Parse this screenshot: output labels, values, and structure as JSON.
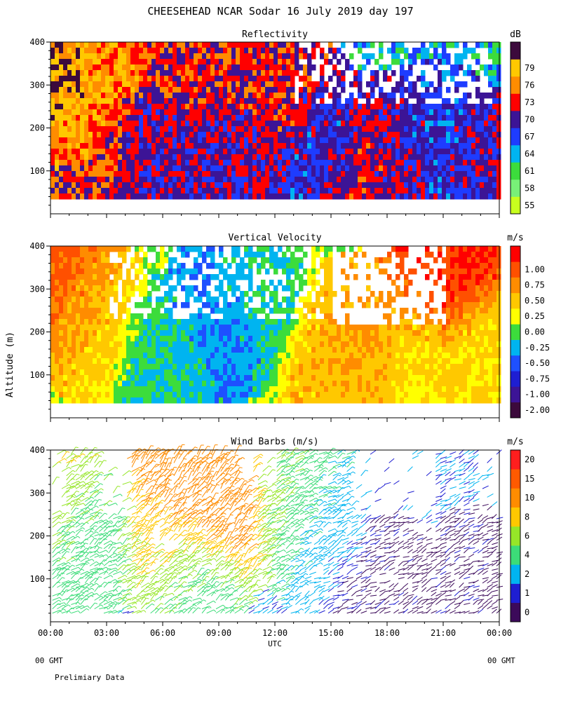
{
  "title": "CHEESEHEAD  NCAR Sodar  16 July 2019  day 197",
  "ylabel": "Altitude (m)",
  "xlabel": "UTC",
  "footer": {
    "left_gmt": "00 GMT",
    "right_gmt": "00 GMT",
    "note": "Prelimiary Data"
  },
  "chart_data": [
    {
      "type": "heatmap",
      "title": "Reflectivity",
      "units": "dB",
      "xlim": [
        0,
        24
      ],
      "ylim": [
        0,
        400
      ],
      "data_range": [
        40,
        400
      ],
      "yticks": [
        "100",
        "200",
        "300",
        "400"
      ],
      "ytick_values": [
        100,
        200,
        300,
        400
      ],
      "colorbar": {
        "labels": [
          "55",
          "58",
          "61",
          "64",
          "67",
          "70",
          "73",
          "76",
          "79"
        ],
        "colors": [
          "#c8ff1e",
          "#78f078",
          "#3cdc3c",
          "#00b4f0",
          "#1e3cff",
          "#3c1496",
          "#ff0000",
          "#ff8c00",
          "#ffc800",
          "#3c0a3c"
        ]
      },
      "features": [
        {
          "hour": 0.5,
          "alt": 300,
          "level": 9
        },
        {
          "hour": 1.2,
          "alt": 200,
          "level": 7
        },
        {
          "hour": 2.0,
          "alt": 320,
          "level": 7
        },
        {
          "hour": 1.0,
          "alt": 60,
          "level": 6
        },
        {
          "hour": 3.0,
          "alt": 60,
          "level": 6
        },
        {
          "hour": 5.0,
          "alt": 120,
          "level": 5
        },
        {
          "hour": 6.2,
          "alt": 80,
          "level": 5
        },
        {
          "hour": 8.0,
          "alt": 160,
          "level": 5
        },
        {
          "hour": 7.6,
          "alt": 320,
          "level": 6
        },
        {
          "hour": 10.0,
          "alt": 100,
          "level": 5
        },
        {
          "hour": 12.5,
          "alt": 280,
          "level": 6
        },
        {
          "hour": 14.5,
          "alt": 150,
          "level": 4
        },
        {
          "hour": 16.0,
          "alt": 80,
          "level": 6
        },
        {
          "hour": 17.0,
          "alt": 60,
          "level": 6
        },
        {
          "hour": 18.5,
          "alt": 120,
          "level": 5
        },
        {
          "hour": 20.5,
          "alt": 150,
          "level": 4
        },
        {
          "hour": 22.5,
          "alt": 100,
          "level": 5
        }
      ]
    },
    {
      "type": "heatmap",
      "title": "Vertical Velocity",
      "units": "m/s",
      "xlim": [
        0,
        24
      ],
      "ylim": [
        0,
        400
      ],
      "data_range": [
        40,
        400
      ],
      "yticks": [
        "100",
        "200",
        "300",
        "400"
      ],
      "ytick_values": [
        100,
        200,
        300,
        400
      ],
      "colorbar": {
        "labels": [
          "-2.00",
          "-1.00",
          "-0.75",
          "-0.50",
          "-0.25",
          "0.00",
          "0.25",
          "0.50",
          "0.75",
          "1.00"
        ],
        "colors": [
          "#3c0a3c",
          "#3c1496",
          "#1e1ed2",
          "#1e50ff",
          "#00b4f0",
          "#3cdc3c",
          "#ffff00",
          "#ffc800",
          "#ff8c00",
          "#ff5000",
          "#ff0000"
        ]
      },
      "features": [
        {
          "hour": 0.8,
          "alt": 330,
          "value": 0.9
        },
        {
          "hour": 2.0,
          "alt": 250,
          "value": 0.3
        },
        {
          "hour": 6.0,
          "alt": 120,
          "value": -0.25
        },
        {
          "hour": 9.0,
          "alt": 250,
          "value": -0.5
        },
        {
          "hour": 11.0,
          "alt": 300,
          "value": -0.25
        },
        {
          "hour": 15.0,
          "alt": 150,
          "value": 0.4
        },
        {
          "hour": 17.0,
          "alt": 180,
          "value": 0.6
        },
        {
          "hour": 19.0,
          "alt": 120,
          "value": 0.2
        },
        {
          "hour": 20.8,
          "alt": 350,
          "value": 1.0
        },
        {
          "hour": 22.5,
          "alt": 120,
          "value": 0.3
        }
      ]
    },
    {
      "type": "scatter",
      "title": "Wind Barbs (m/s)",
      "units": "m/s",
      "xlim": [
        0,
        24
      ],
      "ylim": [
        0,
        400
      ],
      "data_range": [
        20,
        400
      ],
      "yticks": [
        "100",
        "200",
        "300",
        "400"
      ],
      "ytick_values": [
        100,
        200,
        300,
        400
      ],
      "colorbar": {
        "labels": [
          "0",
          "1",
          "2",
          "4",
          "6",
          "8",
          "10",
          "15",
          "20"
        ],
        "colors": [
          "#3c0a5a",
          "#1e1ed2",
          "#00b4f0",
          "#3cdc78",
          "#96e628",
          "#ffc800",
          "#ff8c00",
          "#ff5a00",
          "#ff1e1e"
        ]
      },
      "speed_features": [
        {
          "hour": 7.5,
          "alt": 320,
          "speed": 14
        },
        {
          "hour": 9.0,
          "alt": 280,
          "speed": 12
        },
        {
          "hour": 6.5,
          "alt": 200,
          "speed": 9
        },
        {
          "hour": 7.5,
          "alt": 100,
          "speed": 5
        },
        {
          "hour": 12.5,
          "alt": 300,
          "speed": 6
        },
        {
          "hour": 14.5,
          "alt": 200,
          "speed": 3
        },
        {
          "hour": 17.0,
          "alt": 80,
          "speed": 0.5
        },
        {
          "hour": 22.5,
          "alt": 60,
          "speed": 0.5
        },
        {
          "hour": 1.5,
          "alt": 200,
          "speed": 5
        },
        {
          "hour": 0.3,
          "alt": 320,
          "speed": 8
        }
      ]
    }
  ],
  "xaxis": {
    "ticks": [
      "00:00",
      "03:00",
      "06:00",
      "09:00",
      "12:00",
      "15:00",
      "18:00",
      "21:00",
      "00:00"
    ],
    "tick_hours": [
      0,
      3,
      6,
      9,
      12,
      15,
      18,
      21,
      24
    ]
  }
}
